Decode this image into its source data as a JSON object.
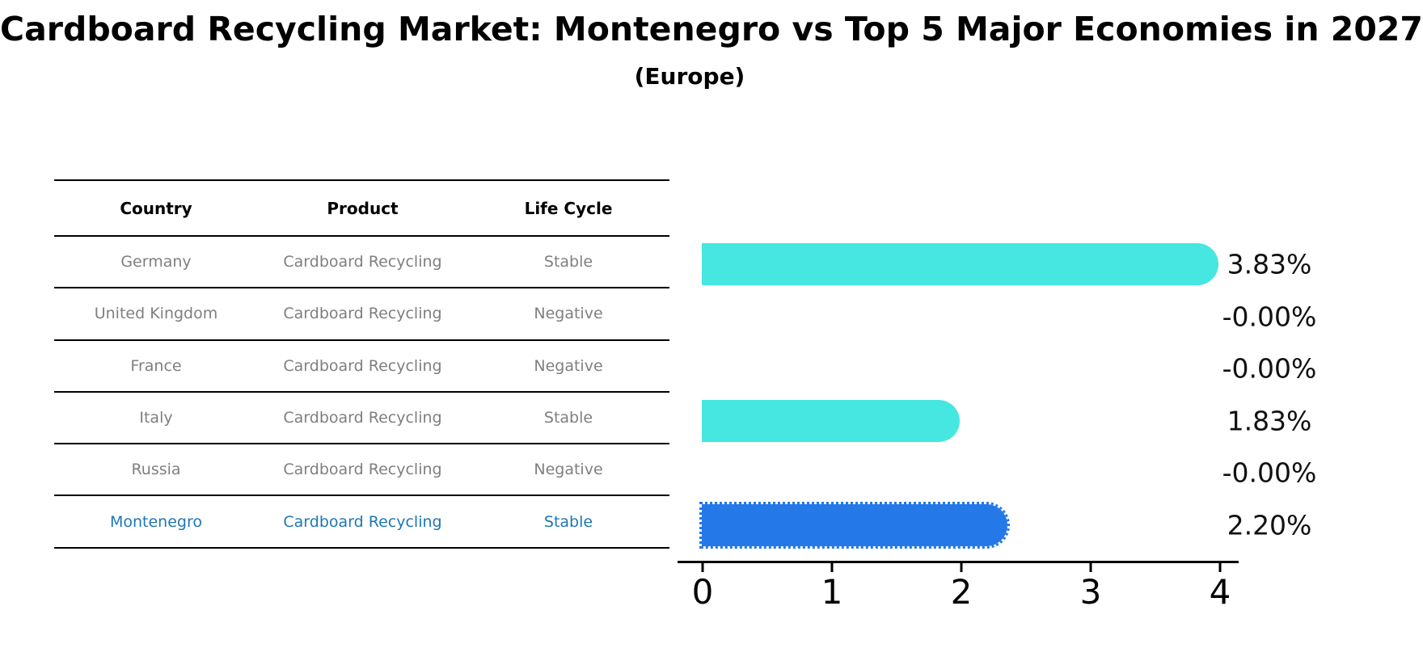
{
  "title": "Cardboard Recycling Market: Montenegro vs Top 5 Major Economies in 2027",
  "subtitle": "(Europe)",
  "table": {
    "headers": [
      "Country",
      "Product",
      "Life Cycle"
    ],
    "rows": [
      {
        "country": "Germany",
        "product": "Cardboard Recycling",
        "life_cycle": "Stable",
        "highlighted": false
      },
      {
        "country": "United Kingdom",
        "product": "Cardboard Recycling",
        "life_cycle": "Negative",
        "highlighted": false
      },
      {
        "country": "France",
        "product": "Cardboard Recycling",
        "life_cycle": "Negative",
        "highlighted": false
      },
      {
        "country": "Italy",
        "product": "Cardboard Recycling",
        "life_cycle": "Stable",
        "highlighted": false
      },
      {
        "country": "Russia",
        "product": "Cardboard Recycling",
        "life_cycle": "Negative",
        "highlighted": false
      },
      {
        "country": "Montenegro",
        "product": "Cardboard Recycling",
        "life_cycle": "Stable",
        "highlighted": true
      }
    ]
  },
  "chart_data": {
    "type": "bar",
    "orientation": "horizontal",
    "title": "Cardboard Recycling Market: Montenegro vs Top 5 Major Economies in 2027 (Europe)",
    "categories": [
      "Germany",
      "United Kingdom",
      "France",
      "Italy",
      "Russia",
      "Montenegro"
    ],
    "values": [
      3.83,
      -0.0,
      -0.0,
      1.83,
      -0.0,
      2.2
    ],
    "value_labels": [
      "3.83%",
      "-0.00%",
      "-0.00%",
      "1.83%",
      "-0.00%",
      "2.20%"
    ],
    "x_ticks": [
      "0",
      "1",
      "2",
      "3",
      "4"
    ],
    "xlim": [
      0,
      4
    ],
    "grid": false,
    "legend": false,
    "highlight_index": 5,
    "highlight_edge_style": "dotted"
  },
  "colors": {
    "bar_cyan": "#45E7E0",
    "bar_blue": "#2478E8",
    "highlight_text": "#1f77b4",
    "table_text": "#7f7f7f",
    "axis": "#000000",
    "value_label": "#111111"
  }
}
